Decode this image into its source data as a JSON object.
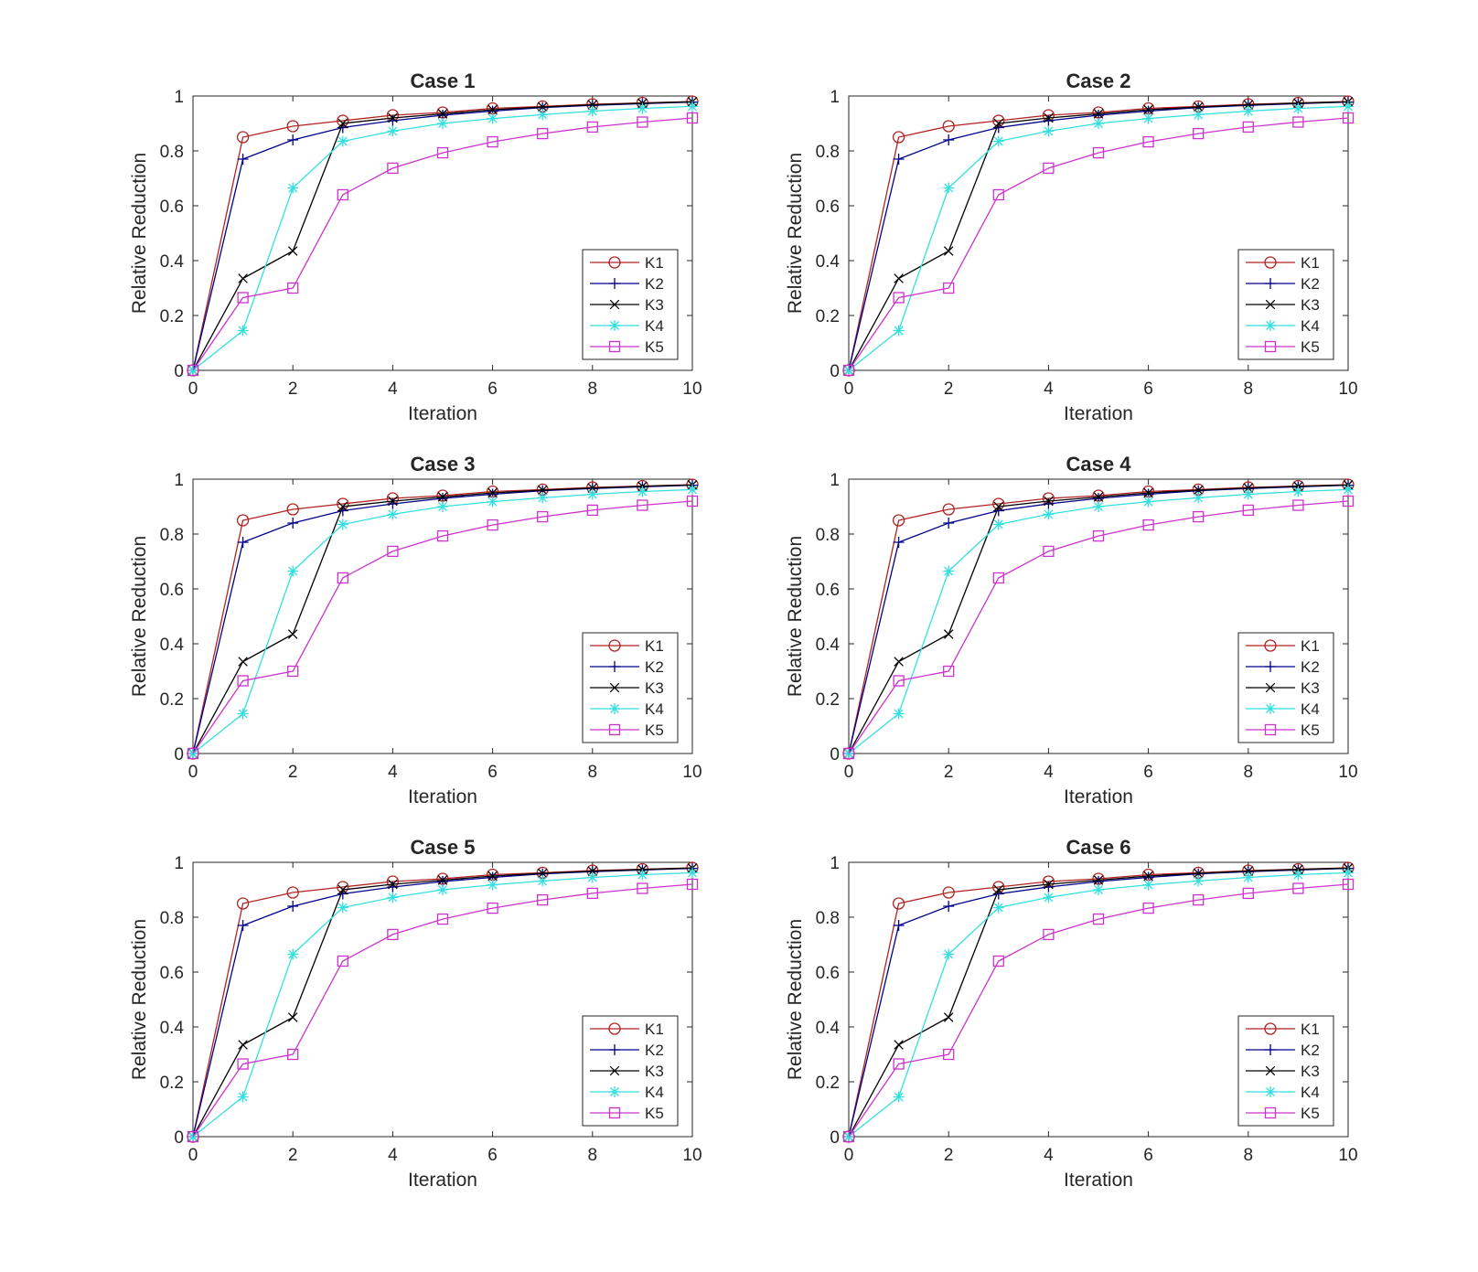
{
  "figure": {
    "title": ""
  },
  "colors": {
    "K1": "#b22222",
    "K2": "#00008b",
    "K3": "#000000",
    "K4": "#33e0e0",
    "K5": "#cc33cc"
  },
  "chart_data": [
    {
      "type": "line",
      "title": "Case 1",
      "xlabel": "Iteration",
      "ylabel": "Relative Reduction",
      "xlim": [
        0,
        10
      ],
      "ylim": [
        0,
        1
      ],
      "xticks": [
        0,
        2,
        4,
        6,
        8,
        10
      ],
      "yticks": [
        0,
        0.2,
        0.4,
        0.6,
        0.8,
        1
      ],
      "xtick_labels": [
        "0",
        "2",
        "4",
        "6",
        "8",
        "10"
      ],
      "ytick_labels": [
        "0",
        "0.2",
        "0.4",
        "0.6",
        "0.8",
        "1"
      ],
      "legend": "lower-right",
      "x": [
        0,
        1,
        2,
        3,
        4,
        5,
        6,
        7,
        8,
        9,
        10
      ],
      "series": [
        {
          "name": "K1",
          "marker": "circle",
          "values": [
            0,
            0.85,
            0.89,
            0.91,
            0.93,
            0.94,
            0.955,
            0.962,
            0.97,
            0.975,
            0.98
          ]
        },
        {
          "name": "K2",
          "marker": "plus",
          "values": [
            0,
            0.77,
            0.84,
            0.885,
            0.91,
            0.93,
            0.945,
            0.958,
            0.966,
            0.972,
            0.978
          ]
        },
        {
          "name": "K3",
          "marker": "x",
          "values": [
            0,
            0.335,
            0.435,
            0.9,
            0.92,
            0.935,
            0.95,
            0.96,
            0.968,
            0.974,
            0.979
          ]
        },
        {
          "name": "K4",
          "marker": "star",
          "values": [
            0,
            0.145,
            0.665,
            0.835,
            0.872,
            0.9,
            0.918,
            0.932,
            0.945,
            0.955,
            0.962
          ]
        },
        {
          "name": "K5",
          "marker": "square",
          "values": [
            0,
            0.265,
            0.3,
            0.64,
            0.737,
            0.793,
            0.833,
            0.863,
            0.887,
            0.905,
            0.92
          ]
        }
      ]
    },
    {
      "type": "line",
      "title": "Case 2",
      "xlabel": "Iteration",
      "ylabel": "Relative Reduction",
      "xlim": [
        0,
        10
      ],
      "ylim": [
        0,
        1
      ],
      "xticks": [
        0,
        2,
        4,
        6,
        8,
        10
      ],
      "yticks": [
        0,
        0.2,
        0.4,
        0.6,
        0.8,
        1
      ],
      "xtick_labels": [
        "0",
        "2",
        "4",
        "6",
        "8",
        "10"
      ],
      "ytick_labels": [
        "0",
        "0.2",
        "0.4",
        "0.6",
        "0.8",
        "1"
      ],
      "legend": "lower-right",
      "x": [
        0,
        1,
        2,
        3,
        4,
        5,
        6,
        7,
        8,
        9,
        10
      ],
      "series": [
        {
          "name": "K1",
          "marker": "circle",
          "values": [
            0,
            0.85,
            0.89,
            0.91,
            0.93,
            0.94,
            0.955,
            0.962,
            0.97,
            0.975,
            0.98
          ]
        },
        {
          "name": "K2",
          "marker": "plus",
          "values": [
            0,
            0.77,
            0.84,
            0.885,
            0.91,
            0.93,
            0.945,
            0.958,
            0.966,
            0.972,
            0.978
          ]
        },
        {
          "name": "K3",
          "marker": "x",
          "values": [
            0,
            0.335,
            0.435,
            0.9,
            0.92,
            0.935,
            0.95,
            0.96,
            0.968,
            0.974,
            0.979
          ]
        },
        {
          "name": "K4",
          "marker": "star",
          "values": [
            0,
            0.145,
            0.665,
            0.835,
            0.872,
            0.9,
            0.918,
            0.932,
            0.945,
            0.955,
            0.962
          ]
        },
        {
          "name": "K5",
          "marker": "square",
          "values": [
            0,
            0.265,
            0.3,
            0.64,
            0.737,
            0.793,
            0.833,
            0.863,
            0.887,
            0.905,
            0.92
          ]
        }
      ]
    },
    {
      "type": "line",
      "title": "Case 3",
      "xlabel": "Iteration",
      "ylabel": "Relative Reduction",
      "xlim": [
        0,
        10
      ],
      "ylim": [
        0,
        1
      ],
      "xticks": [
        0,
        2,
        4,
        6,
        8,
        10
      ],
      "yticks": [
        0,
        0.2,
        0.4,
        0.6,
        0.8,
        1
      ],
      "xtick_labels": [
        "0",
        "2",
        "4",
        "6",
        "8",
        "10"
      ],
      "ytick_labels": [
        "0",
        "0.2",
        "0.4",
        "0.6",
        "0.8",
        "1"
      ],
      "legend": "lower-right",
      "x": [
        0,
        1,
        2,
        3,
        4,
        5,
        6,
        7,
        8,
        9,
        10
      ],
      "series": [
        {
          "name": "K1",
          "marker": "circle",
          "values": [
            0,
            0.85,
            0.89,
            0.91,
            0.93,
            0.94,
            0.955,
            0.962,
            0.97,
            0.975,
            0.98
          ]
        },
        {
          "name": "K2",
          "marker": "plus",
          "values": [
            0,
            0.77,
            0.84,
            0.885,
            0.91,
            0.93,
            0.945,
            0.958,
            0.966,
            0.972,
            0.978
          ]
        },
        {
          "name": "K3",
          "marker": "x",
          "values": [
            0,
            0.335,
            0.435,
            0.9,
            0.92,
            0.935,
            0.95,
            0.96,
            0.968,
            0.974,
            0.979
          ]
        },
        {
          "name": "K4",
          "marker": "star",
          "values": [
            0,
            0.145,
            0.665,
            0.835,
            0.872,
            0.9,
            0.918,
            0.932,
            0.945,
            0.955,
            0.962
          ]
        },
        {
          "name": "K5",
          "marker": "square",
          "values": [
            0,
            0.265,
            0.3,
            0.64,
            0.737,
            0.793,
            0.833,
            0.863,
            0.887,
            0.905,
            0.92
          ]
        }
      ]
    },
    {
      "type": "line",
      "title": "Case 4",
      "xlabel": "Iteration",
      "ylabel": "Relative Reduction",
      "xlim": [
        0,
        10
      ],
      "ylim": [
        0,
        1
      ],
      "xticks": [
        0,
        2,
        4,
        6,
        8,
        10
      ],
      "yticks": [
        0,
        0.2,
        0.4,
        0.6,
        0.8,
        1
      ],
      "xtick_labels": [
        "0",
        "2",
        "4",
        "6",
        "8",
        "10"
      ],
      "ytick_labels": [
        "0",
        "0.2",
        "0.4",
        "0.6",
        "0.8",
        "1"
      ],
      "legend": "lower-right",
      "x": [
        0,
        1,
        2,
        3,
        4,
        5,
        6,
        7,
        8,
        9,
        10
      ],
      "series": [
        {
          "name": "K1",
          "marker": "circle",
          "values": [
            0,
            0.85,
            0.89,
            0.91,
            0.93,
            0.94,
            0.955,
            0.962,
            0.97,
            0.975,
            0.98
          ]
        },
        {
          "name": "K2",
          "marker": "plus",
          "values": [
            0,
            0.77,
            0.84,
            0.885,
            0.91,
            0.93,
            0.945,
            0.958,
            0.966,
            0.972,
            0.978
          ]
        },
        {
          "name": "K3",
          "marker": "x",
          "values": [
            0,
            0.335,
            0.435,
            0.9,
            0.92,
            0.935,
            0.95,
            0.96,
            0.968,
            0.974,
            0.979
          ]
        },
        {
          "name": "K4",
          "marker": "star",
          "values": [
            0,
            0.145,
            0.665,
            0.835,
            0.872,
            0.9,
            0.918,
            0.932,
            0.945,
            0.955,
            0.962
          ]
        },
        {
          "name": "K5",
          "marker": "square",
          "values": [
            0,
            0.265,
            0.3,
            0.64,
            0.737,
            0.793,
            0.833,
            0.863,
            0.887,
            0.905,
            0.92
          ]
        }
      ]
    },
    {
      "type": "line",
      "title": "Case 5",
      "xlabel": "Iteration",
      "ylabel": "Relative Reduction",
      "xlim": [
        0,
        10
      ],
      "ylim": [
        0,
        1
      ],
      "xticks": [
        0,
        2,
        4,
        6,
        8,
        10
      ],
      "yticks": [
        0,
        0.2,
        0.4,
        0.6,
        0.8,
        1
      ],
      "xtick_labels": [
        "0",
        "2",
        "4",
        "6",
        "8",
        "10"
      ],
      "ytick_labels": [
        "0",
        "0.2",
        "0.4",
        "0.6",
        "0.8",
        "1"
      ],
      "legend": "lower-right",
      "x": [
        0,
        1,
        2,
        3,
        4,
        5,
        6,
        7,
        8,
        9,
        10
      ],
      "series": [
        {
          "name": "K1",
          "marker": "circle",
          "values": [
            0,
            0.85,
            0.89,
            0.91,
            0.93,
            0.94,
            0.955,
            0.962,
            0.97,
            0.975,
            0.98
          ]
        },
        {
          "name": "K2",
          "marker": "plus",
          "values": [
            0,
            0.77,
            0.84,
            0.885,
            0.91,
            0.93,
            0.945,
            0.958,
            0.966,
            0.972,
            0.978
          ]
        },
        {
          "name": "K3",
          "marker": "x",
          "values": [
            0,
            0.335,
            0.435,
            0.9,
            0.92,
            0.935,
            0.95,
            0.96,
            0.968,
            0.974,
            0.979
          ]
        },
        {
          "name": "K4",
          "marker": "star",
          "values": [
            0,
            0.145,
            0.665,
            0.835,
            0.872,
            0.9,
            0.918,
            0.932,
            0.945,
            0.955,
            0.962
          ]
        },
        {
          "name": "K5",
          "marker": "square",
          "values": [
            0,
            0.265,
            0.3,
            0.64,
            0.737,
            0.793,
            0.833,
            0.863,
            0.887,
            0.905,
            0.92
          ]
        }
      ]
    },
    {
      "type": "line",
      "title": "Case 6",
      "xlabel": "Iteration",
      "ylabel": "Relative Reduction",
      "xlim": [
        0,
        10
      ],
      "ylim": [
        0,
        1
      ],
      "xticks": [
        0,
        2,
        4,
        6,
        8,
        10
      ],
      "yticks": [
        0,
        0.2,
        0.4,
        0.6,
        0.8,
        1
      ],
      "xtick_labels": [
        "0",
        "2",
        "4",
        "6",
        "8",
        "10"
      ],
      "ytick_labels": [
        "0",
        "0.2",
        "0.4",
        "0.6",
        "0.8",
        "1"
      ],
      "legend": "lower-right",
      "x": [
        0,
        1,
        2,
        3,
        4,
        5,
        6,
        7,
        8,
        9,
        10
      ],
      "series": [
        {
          "name": "K1",
          "marker": "circle",
          "values": [
            0,
            0.85,
            0.89,
            0.91,
            0.93,
            0.94,
            0.955,
            0.962,
            0.97,
            0.975,
            0.98
          ]
        },
        {
          "name": "K2",
          "marker": "plus",
          "values": [
            0,
            0.77,
            0.84,
            0.885,
            0.91,
            0.93,
            0.945,
            0.958,
            0.966,
            0.972,
            0.978
          ]
        },
        {
          "name": "K3",
          "marker": "x",
          "values": [
            0,
            0.335,
            0.435,
            0.9,
            0.92,
            0.935,
            0.95,
            0.96,
            0.968,
            0.974,
            0.979
          ]
        },
        {
          "name": "K4",
          "marker": "star",
          "values": [
            0,
            0.145,
            0.665,
            0.835,
            0.872,
            0.9,
            0.918,
            0.932,
            0.945,
            0.955,
            0.962
          ]
        },
        {
          "name": "K5",
          "marker": "square",
          "values": [
            0,
            0.265,
            0.3,
            0.64,
            0.737,
            0.793,
            0.833,
            0.863,
            0.887,
            0.905,
            0.92
          ]
        }
      ]
    }
  ]
}
